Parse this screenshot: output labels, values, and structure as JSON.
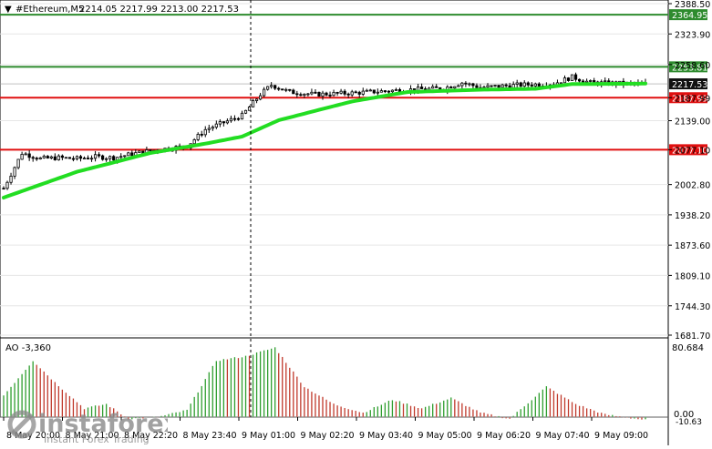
{
  "header": {
    "symbol_arrow": "▼",
    "symbol_text": "#Ethereum,M5",
    "ohlc": "2214.05 2217.99 2213.00 2217.53"
  },
  "price_axis": {
    "min": 1681.7,
    "max": 2388.5,
    "ticks": [
      "2388.50",
      "2323.90",
      "2258.60",
      "2187.99",
      "2139.00",
      "2077.10",
      "2002.80",
      "1938.20",
      "1873.60",
      "1809.10",
      "1744.30",
      "1681.70"
    ]
  },
  "levels": [
    {
      "label": "2364.95",
      "value": 2364.95,
      "color": "#2e8b2e"
    },
    {
      "label": "2253.81",
      "value": 2253.81,
      "color": "#2e8b2e"
    },
    {
      "label": "2187.99",
      "value": 2187.99,
      "color": "#e01010"
    },
    {
      "label": "2077.10",
      "value": 2077.1,
      "color": "#e01010"
    }
  ],
  "current_price": {
    "label": "2217.53",
    "value": 2217.53
  },
  "indicator": {
    "title": "AO -3,360",
    "max_label": "80.684",
    "zero_label": "0.00",
    "min_label": "-10.63"
  },
  "time_axis": [
    "8 May 20:00",
    "8 May 21:00",
    "8 May 22:20",
    "8 May 23:40",
    "9 May 01:00",
    "9 May 02:20",
    "9 May 03:40",
    "9 May 05:00",
    "9 May 06:20",
    "9 May 07:40",
    "9 May 09:00"
  ],
  "watermark": {
    "brand": "instaforex",
    "tagline": "Instant Forex Trading"
  },
  "colors": {
    "ma": "#22dd22",
    "up_bar": "#2e9e2e",
    "down_bar": "#c0392b",
    "candle": "#000000",
    "grid": "#e6e6e6"
  },
  "chart_data": {
    "type": "candlestick",
    "symbol": "#Ethereum",
    "timeframe": "M5",
    "close_path": [
      {
        "t": 0,
        "c": 1995
      },
      {
        "t": 5,
        "c": 2070
      },
      {
        "t": 10,
        "c": 2058
      },
      {
        "t": 15,
        "c": 2060
      },
      {
        "t": 20,
        "c": 2058
      },
      {
        "t": 25,
        "c": 2062
      },
      {
        "t": 30,
        "c": 2060
      },
      {
        "t": 35,
        "c": 2068
      },
      {
        "t": 40,
        "c": 2075
      },
      {
        "t": 45,
        "c": 2080
      },
      {
        "t": 50,
        "c": 2085
      },
      {
        "t": 55,
        "c": 2120
      },
      {
        "t": 60,
        "c": 2135
      },
      {
        "t": 65,
        "c": 2150
      },
      {
        "t": 70,
        "c": 2195
      },
      {
        "t": 73,
        "c": 2215
      },
      {
        "t": 78,
        "c": 2200
      },
      {
        "t": 85,
        "c": 2195
      },
      {
        "t": 95,
        "c": 2198
      },
      {
        "t": 110,
        "c": 2205
      },
      {
        "t": 120,
        "c": 2208
      },
      {
        "t": 125,
        "c": 2220
      },
      {
        "t": 130,
        "c": 2210
      },
      {
        "t": 140,
        "c": 2215
      },
      {
        "t": 150,
        "c": 2218
      },
      {
        "t": 155,
        "c": 2232
      },
      {
        "t": 160,
        "c": 2220
      },
      {
        "t": 170,
        "c": 2218
      },
      {
        "t": 175,
        "c": 2217.53
      }
    ],
    "ma": [
      {
        "t": 0,
        "v": 1975
      },
      {
        "t": 20,
        "v": 2030
      },
      {
        "t": 40,
        "v": 2070
      },
      {
        "t": 55,
        "v": 2090
      },
      {
        "t": 65,
        "v": 2105
      },
      {
        "t": 75,
        "v": 2140
      },
      {
        "t": 95,
        "v": 2180
      },
      {
        "t": 110,
        "v": 2200
      },
      {
        "t": 130,
        "v": 2205
      },
      {
        "t": 145,
        "v": 2207
      },
      {
        "t": 155,
        "v": 2217
      },
      {
        "t": 175,
        "v": 2218
      }
    ],
    "ao_profile": [
      {
        "t": 0,
        "v": 25
      },
      {
        "t": 8,
        "v": 65
      },
      {
        "t": 14,
        "v": 40
      },
      {
        "t": 22,
        "v": 10
      },
      {
        "t": 28,
        "v": 15
      },
      {
        "t": 34,
        "v": -2
      },
      {
        "t": 42,
        "v": 0
      },
      {
        "t": 50,
        "v": 8
      },
      {
        "t": 58,
        "v": 65
      },
      {
        "t": 66,
        "v": 70
      },
      {
        "t": 74,
        "v": 80
      },
      {
        "t": 82,
        "v": 35
      },
      {
        "t": 90,
        "v": 15
      },
      {
        "t": 98,
        "v": 5
      },
      {
        "t": 106,
        "v": 20
      },
      {
        "t": 114,
        "v": 10
      },
      {
        "t": 122,
        "v": 22
      },
      {
        "t": 130,
        "v": 5
      },
      {
        "t": 138,
        "v": -2
      },
      {
        "t": 148,
        "v": 35
      },
      {
        "t": 156,
        "v": 15
      },
      {
        "t": 164,
        "v": 3
      },
      {
        "t": 175,
        "v": -3.36
      }
    ]
  }
}
